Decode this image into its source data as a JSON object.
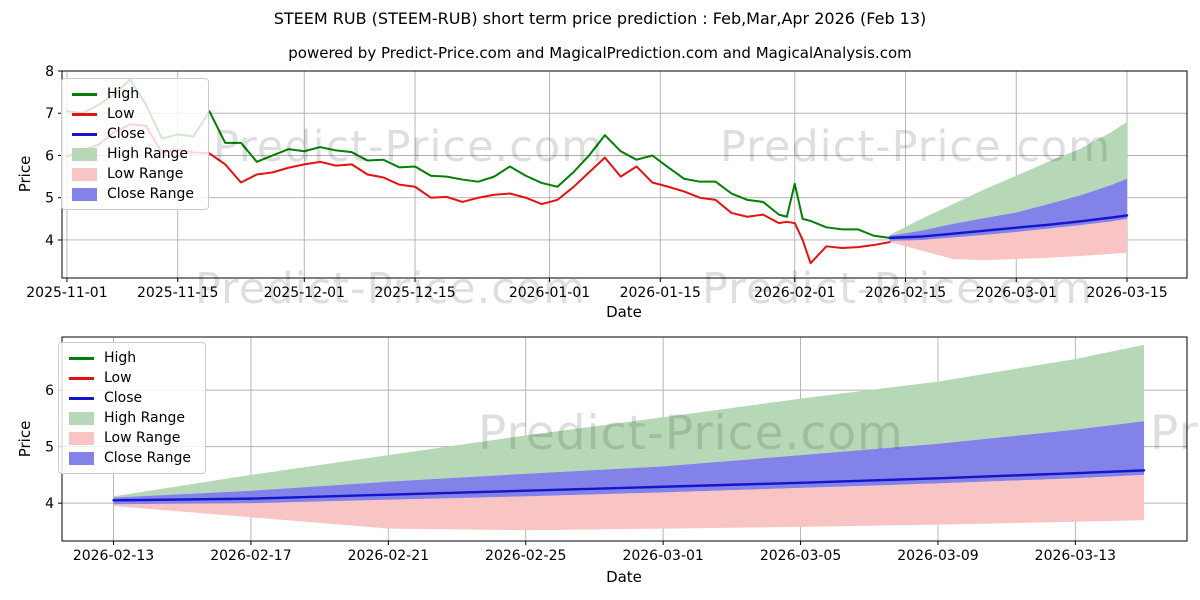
{
  "title": "STEEM RUB (STEEM-RUB) short term price prediction : Feb,Mar,Apr 2026 (Feb 13)",
  "subtitle": "powered by Predict-Price.com and MagicalPrediction.com and MagicalAnalysis.com",
  "watermark": "Predict-Price.com",
  "colors": {
    "high": "#008000",
    "low": "#e51212",
    "close": "#1414cc",
    "high_range": "#b7d8b7",
    "low_range": "#f9c4c4",
    "close_range": "#8282e8",
    "grid": "#b0b0b0",
    "spine": "#000000",
    "tick_text": "#000000"
  },
  "legend": [
    {
      "label": "High",
      "type": "line",
      "color_key": "high"
    },
    {
      "label": "Low",
      "type": "line",
      "color_key": "low"
    },
    {
      "label": "Close",
      "type": "line",
      "color_key": "close"
    },
    {
      "label": "High Range",
      "type": "patch",
      "color_key": "high_range"
    },
    {
      "label": "Low Range",
      "type": "patch",
      "color_key": "low_range"
    },
    {
      "label": "Close Range",
      "type": "patch",
      "color_key": "close_range"
    }
  ],
  "chart_data": [
    {
      "type": "line",
      "title": "",
      "xlabel": "Date",
      "ylabel": "Price",
      "grid": true,
      "legend_position": "upper left",
      "xlim": [
        "2025-10-31T09:00:00",
        "2026-03-22T14:00:00"
      ],
      "ylim": [
        3.1,
        8.0
      ],
      "x_ticks": [
        "2025-11-01",
        "2025-11-15",
        "2025-12-01",
        "2025-12-15",
        "2026-01-01",
        "2026-01-15",
        "2026-02-01",
        "2026-02-15",
        "2026-03-01",
        "2026-03-15"
      ],
      "y_ticks": [
        4,
        5,
        6,
        7,
        8
      ],
      "history": {
        "dates": [
          "2025-11-01",
          "2025-11-03",
          "2025-11-05",
          "2025-11-07",
          "2025-11-09",
          "2025-11-11",
          "2025-11-13",
          "2025-11-15",
          "2025-11-17",
          "2025-11-19",
          "2025-11-21",
          "2025-11-23",
          "2025-11-25",
          "2025-11-27",
          "2025-11-29",
          "2025-12-01",
          "2025-12-03",
          "2025-12-05",
          "2025-12-07",
          "2025-12-09",
          "2025-12-11",
          "2025-12-13",
          "2025-12-15",
          "2025-12-17",
          "2025-12-19",
          "2025-12-21",
          "2025-12-23",
          "2025-12-25",
          "2025-12-27",
          "2025-12-29",
          "2025-12-31",
          "2026-01-02",
          "2026-01-04",
          "2026-01-06",
          "2026-01-08",
          "2026-01-10",
          "2026-01-12",
          "2026-01-14",
          "2026-01-16",
          "2026-01-18",
          "2026-01-20",
          "2026-01-22",
          "2026-01-24",
          "2026-01-26",
          "2026-01-28",
          "2026-01-30",
          "2026-01-31",
          "2026-02-01",
          "2026-02-02",
          "2026-02-03",
          "2026-02-05",
          "2026-02-07",
          "2026-02-09",
          "2026-02-11",
          "2026-02-13"
        ],
        "high": [
          7.05,
          7.0,
          7.2,
          7.45,
          7.8,
          7.2,
          6.4,
          6.5,
          6.45,
          7.05,
          6.3,
          6.3,
          5.85,
          6.0,
          6.15,
          6.1,
          6.2,
          6.12,
          6.08,
          5.88,
          5.9,
          5.72,
          5.74,
          5.52,
          5.5,
          5.43,
          5.38,
          5.5,
          5.74,
          5.52,
          5.35,
          5.26,
          5.6,
          6.0,
          6.48,
          6.1,
          5.9,
          6.0,
          5.72,
          5.45,
          5.38,
          5.38,
          5.1,
          4.95,
          4.9,
          4.6,
          4.55,
          5.33,
          4.5,
          4.45,
          4.3,
          4.25,
          4.25,
          4.1,
          4.05
        ],
        "low": [
          5.98,
          6.12,
          6.26,
          6.55,
          6.74,
          6.7,
          6.07,
          6.14,
          6.07,
          6.05,
          5.79,
          5.36,
          5.55,
          5.6,
          5.71,
          5.79,
          5.85,
          5.76,
          5.79,
          5.55,
          5.48,
          5.31,
          5.26,
          5.0,
          5.02,
          4.9,
          5.0,
          5.07,
          5.1,
          5.0,
          4.85,
          4.95,
          5.25,
          5.6,
          5.95,
          5.5,
          5.74,
          5.36,
          5.26,
          5.15,
          5.0,
          4.95,
          4.64,
          4.55,
          4.6,
          4.4,
          4.43,
          4.4,
          4.0,
          3.45,
          3.85,
          3.81,
          3.83,
          3.88,
          3.95
        ]
      },
      "forecast": {
        "dates": [
          "2026-02-13",
          "2026-02-17",
          "2026-02-21",
          "2026-02-25",
          "2026-03-01",
          "2026-03-05",
          "2026-03-09",
          "2026-03-13",
          "2026-03-15"
        ],
        "close": [
          4.05,
          4.08,
          4.15,
          4.22,
          4.29,
          4.36,
          4.44,
          4.53,
          4.58
        ],
        "high_upper": [
          4.12,
          4.5,
          4.85,
          5.2,
          5.52,
          5.85,
          6.15,
          6.55,
          6.8
        ],
        "close_upper": [
          4.1,
          4.22,
          4.38,
          4.52,
          4.65,
          4.85,
          5.05,
          5.3,
          5.45
        ],
        "close_lower": [
          3.98,
          4.0,
          4.06,
          4.12,
          4.19,
          4.27,
          4.35,
          4.44,
          4.5
        ],
        "low_lower": [
          3.95,
          3.75,
          3.55,
          3.52,
          3.55,
          3.58,
          3.62,
          3.67,
          3.7
        ]
      }
    },
    {
      "type": "line",
      "title": "",
      "xlabel": "Date",
      "ylabel": "Price",
      "grid": true,
      "legend_position": "upper left",
      "xlim": [
        "2026-02-11T12:00:00",
        "2026-03-16T06:00:00"
      ],
      "ylim": [
        3.33,
        6.94
      ],
      "x_ticks": [
        "2026-02-13",
        "2026-02-17",
        "2026-02-21",
        "2026-02-25",
        "2026-03-01",
        "2026-03-05",
        "2026-03-09",
        "2026-03-13"
      ],
      "y_ticks": [
        4,
        5,
        6
      ],
      "forecast": {
        "dates": [
          "2026-02-13",
          "2026-02-17",
          "2026-02-21",
          "2026-02-25",
          "2026-03-01",
          "2026-03-05",
          "2026-03-09",
          "2026-03-13",
          "2026-03-15"
        ],
        "close": [
          4.05,
          4.08,
          4.15,
          4.22,
          4.29,
          4.36,
          4.44,
          4.53,
          4.58
        ],
        "high_upper": [
          4.12,
          4.5,
          4.85,
          5.2,
          5.52,
          5.85,
          6.15,
          6.55,
          6.8
        ],
        "close_upper": [
          4.1,
          4.22,
          4.38,
          4.52,
          4.65,
          4.85,
          5.05,
          5.3,
          5.45
        ],
        "close_lower": [
          3.98,
          4.0,
          4.06,
          4.12,
          4.19,
          4.27,
          4.35,
          4.44,
          4.5
        ],
        "low_lower": [
          3.95,
          3.75,
          3.55,
          3.52,
          3.55,
          3.58,
          3.62,
          3.67,
          3.7
        ]
      }
    }
  ]
}
